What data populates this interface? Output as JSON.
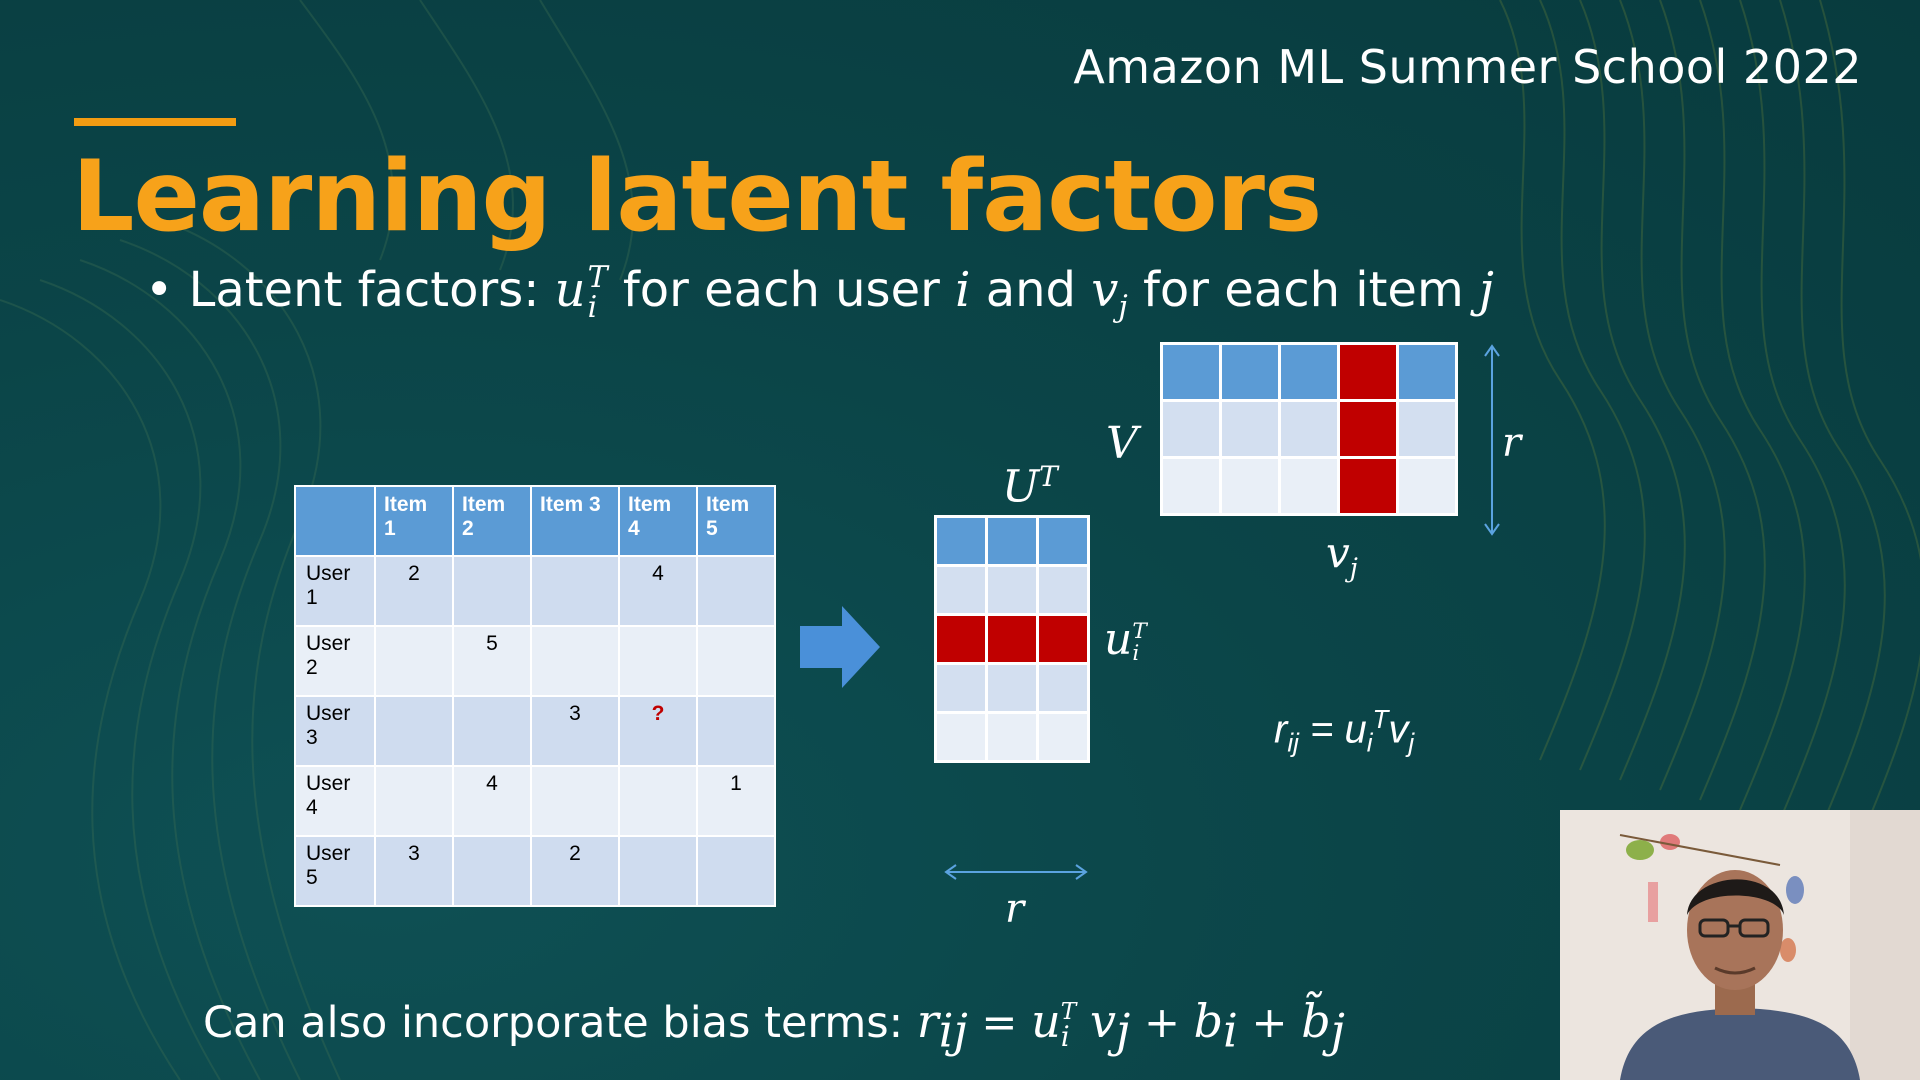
{
  "slide": {
    "event_title": "Amazon ML Summer School 2022",
    "title": "Learning latent factors",
    "bullet": {
      "prefix": "Latent factors:",
      "u_symbol": "u",
      "u_sub": "i",
      "u_sup": "T",
      "mid1": "for each user",
      "i_var": "i",
      "mid2": "and",
      "v_symbol": "v",
      "v_sub": "j",
      "mid3": "for each item",
      "j_var": "j"
    },
    "table": {
      "headers": [
        "",
        "Item 1",
        "Item 2",
        "Item 3",
        "Item 4",
        "Item 5"
      ],
      "rows": [
        {
          "user": "User 1",
          "values": [
            "2",
            "",
            "",
            "4",
            ""
          ]
        },
        {
          "user": "User 2",
          "values": [
            "",
            "5",
            "",
            "",
            ""
          ]
        },
        {
          "user": "User 3",
          "values": [
            "",
            "",
            "3",
            "?",
            ""
          ]
        },
        {
          "user": "User 4",
          "values": [
            "",
            "4",
            "",
            "",
            "1"
          ]
        },
        {
          "user": "User 5",
          "values": [
            "3",
            "",
            "2",
            "",
            ""
          ]
        }
      ]
    },
    "labels": {
      "ut": "U",
      "ut_sup": "T",
      "v": "V",
      "r_vertical": "r",
      "r_horizontal": "r",
      "vj": "v",
      "vj_sub": "j",
      "ui": "u",
      "ui_sub": "i",
      "ui_sup": "T",
      "formula": "r",
      "formula_sub": "ij",
      "formula_rhs_u": "u",
      "formula_rhs_u_sub": "i",
      "formula_rhs_u_sup": "T",
      "formula_rhs_v": "v",
      "formula_rhs_v_sub": "j"
    },
    "bottom": {
      "text": "Can also incorporate bias terms:",
      "r": "r",
      "r_sub": "ij",
      "eq": "=",
      "u": "u",
      "u_sub": "i",
      "u_sup": "T",
      "v": "v",
      "v_sub": "j",
      "plus1": "+",
      "b": "b",
      "b_sub": "i",
      "plus2": "+",
      "bt": "b̃",
      "bt_sub": "j"
    },
    "colors": {
      "background": "#0b4548",
      "title": "#f7a21a",
      "header_blue": "#5b9bd5",
      "highlight_red": "#c00000"
    }
  }
}
